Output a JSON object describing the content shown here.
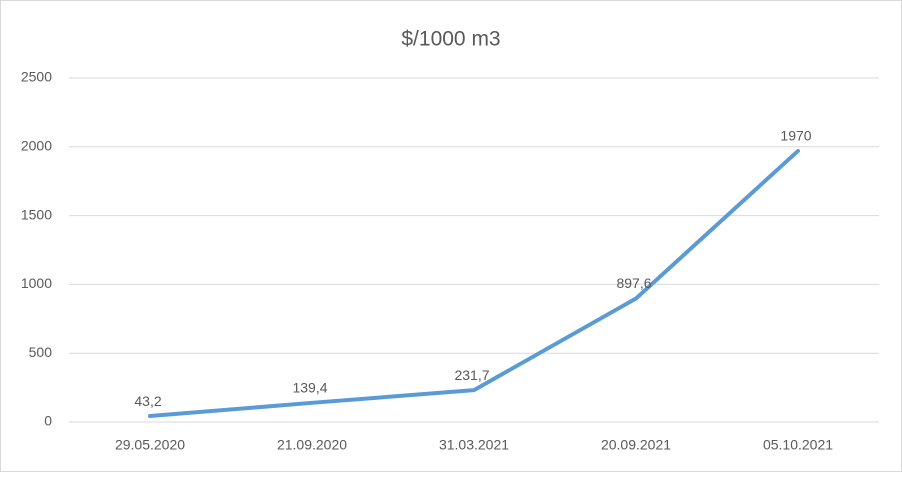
{
  "chart_data": {
    "type": "line",
    "title": "$/1000 m3",
    "categories": [
      "29.05.2020",
      "21.09.2020",
      "31.03.2021",
      "20.09.2021",
      "05.10.2021"
    ],
    "series": [
      {
        "color": "#5b9bd5",
        "values": [
          43.2,
          139.4,
          231.7,
          897.6,
          1970
        ],
        "value_labels": [
          "43,2",
          "139,4",
          "231,7",
          "897,6",
          "1970"
        ]
      }
    ],
    "ylim": [
      0,
      2500
    ],
    "yticks": [
      0,
      500,
      1000,
      1500,
      2000,
      2500
    ],
    "grid": true
  }
}
